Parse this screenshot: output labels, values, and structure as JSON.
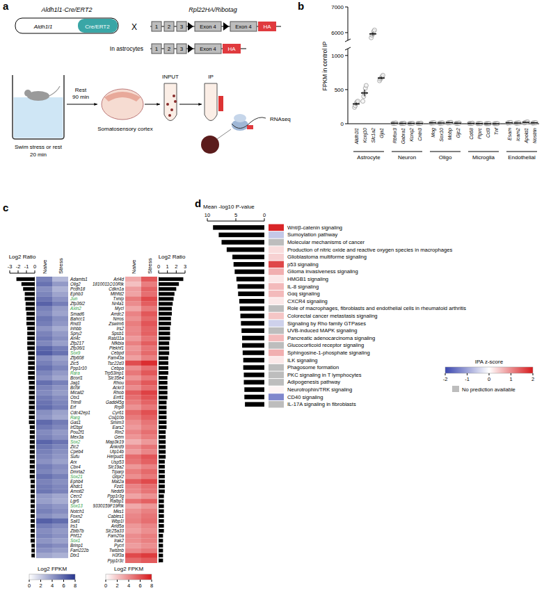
{
  "panel_labels": [
    "a",
    "b",
    "c",
    "d"
  ],
  "diagram": {
    "left_title": "Aldh1l1-Cre/ERT2",
    "promoter": "Aldh1l1",
    "cre": "Cre/ERT2",
    "cross": "X",
    "right_title": "Rpl22HA/Ribotag",
    "exons": [
      "1",
      "2",
      "3"
    ],
    "exon4": "Exon 4",
    "tag": "HA",
    "astro_label": "In astrocytes",
    "swim": "Swim stress or rest",
    "swim_time": "20 min",
    "rest": "Rest",
    "rest_time": "90 min",
    "tissue": "Somatosensory cortex",
    "input": "INPUT",
    "ip": "IP",
    "seq": "RNAseq"
  },
  "chart_data": [
    {
      "type": "dot",
      "ylabel": "FPKM in control IP",
      "ylim": [
        0,
        7000
      ],
      "ybreak": [
        1100,
        5700
      ],
      "yticks": [
        0,
        500,
        1000,
        6000,
        7000
      ],
      "series": [
        {
          "name": "Astrocyte",
          "categories": [
            "Aldh1l1",
            "Kcnj10",
            "Slc1a2",
            "Gja1"
          ],
          "values": [
            290,
            450,
            5950,
            670
          ],
          "errors": [
            20,
            50,
            70,
            20
          ],
          "points": [
            [
              240,
              265,
              300,
              320,
              330
            ],
            [
              330,
              400,
              450,
              520,
              560
            ],
            [
              5800,
              5900,
              5950,
              6050,
              6100
            ],
            [
              630,
              655,
              670,
              690,
              710
            ]
          ]
        },
        {
          "name": "Neuron",
          "categories": [
            "Rbfox3",
            "Gabra1",
            "Kcnq2",
            "Cntn3"
          ],
          "values": [
            8,
            5,
            4,
            6
          ],
          "errors": [
            1,
            1,
            1,
            1
          ],
          "points": [
            [
              6,
              7,
              8,
              9,
              10
            ],
            [
              3,
              4,
              5,
              6,
              7
            ],
            [
              2,
              3,
              4,
              5,
              6
            ],
            [
              4,
              5,
              6,
              7,
              8
            ]
          ]
        },
        {
          "name": "Oligo",
          "categories": [
            "Mog",
            "Sox10",
            "Mobp",
            "Gjc2"
          ],
          "values": [
            12,
            10,
            15,
            8
          ],
          "errors": [
            1,
            1,
            1,
            1
          ],
          "points": [
            [
              9,
              11,
              12,
              13,
              15
            ],
            [
              8,
              9,
              10,
              11,
              12
            ],
            [
              11,
              13,
              15,
              17,
              19
            ],
            [
              6,
              7,
              8,
              9,
              10
            ]
          ]
        },
        {
          "name": "Microglia",
          "categories": [
            "Cd68",
            "Ptprc",
            "Ccl3",
            "Tnf"
          ],
          "values": [
            6,
            2,
            1,
            1
          ],
          "errors": [
            1,
            1,
            1,
            1
          ],
          "points": [
            [
              4,
              5,
              6,
              7,
              8
            ],
            [
              1,
              2,
              2,
              2,
              3
            ],
            [
              0,
              1,
              1,
              1,
              2
            ],
            [
              0,
              1,
              1,
              1,
              2
            ]
          ]
        },
        {
          "name": "Endothelial",
          "categories": [
            "Esam",
            "Icam2",
            "Apold1",
            "Nostrin"
          ],
          "values": [
            14,
            10,
            20,
            12
          ],
          "errors": [
            1,
            1,
            1,
            1
          ],
          "points": [
            [
              10,
              12,
              14,
              16,
              18
            ],
            [
              8,
              9,
              10,
              11,
              12
            ],
            [
              12,
              16,
              20,
              24,
              28
            ],
            [
              9,
              11,
              12,
              13,
              15
            ]
          ]
        }
      ]
    },
    {
      "type": "heatmap",
      "columns": [
        "Naive",
        "Stress"
      ],
      "ratio_label": "Log2 Ratio",
      "colorbar_label": "Log2 FPKM",
      "panels": [
        {
          "genes": [
            "Adamts1",
            "Olig2",
            "Pcdh18",
            "Ephb3",
            "Jun",
            "Zfp36l2",
            "Axin2",
            "Smad6",
            "Bahcc1",
            "Rnd3",
            "Inhbb",
            "Spry2",
            "Arl4c",
            "Zfp217",
            "Zfp36l1",
            "Sox9",
            "Zfp608",
            "Zic5",
            "Ppp1r10",
            "Rara",
            "Bcorl1",
            "Jag1",
            "Bcl9l",
            "Micall2",
            "Otx1",
            "Trim8",
            "Erf",
            "Cdc42ep1",
            "Rarg",
            "Gas1",
            "Irf2bpl",
            "Pou2f1",
            "Mex3a",
            "Sox2",
            "Zic2",
            "Cpeb4",
            "Sufu",
            "Arx",
            "Cbx4",
            "Dmrta2",
            "Sox21",
            "Ephb4",
            "Ahdc1",
            "Amotl2",
            "Cecr2",
            "Lgr6",
            "Sox13",
            "Notch1",
            "Foxn2",
            "Sall1",
            "Irs1",
            "Zbtb7b",
            "Phf12",
            "Sox1",
            "Brinp1",
            "Fam222b",
            "Dtx1"
          ],
          "naive": [
            5.0,
            5.6,
            4.4,
            4.8,
            5.5,
            6.2,
            5.0,
            4.6,
            5.4,
            5.1,
            4.2,
            4.9,
            5.3,
            4.7,
            6.0,
            6.4,
            4.5,
            5.0,
            5.6,
            4.8,
            4.3,
            5.7,
            4.9,
            4.6,
            5.2,
            5.5,
            5.8,
            4.4,
            4.1,
            5.9,
            5.3,
            4.6,
            4.9,
            6.1,
            5.4,
            5.0,
            4.7,
            4.3,
            5.1,
            4.8,
            5.6,
            4.9,
            5.2,
            5.4,
            4.0,
            3.8,
            4.6,
            5.0,
            4.4,
            6.3,
            5.1,
            4.5,
            4.8,
            4.2,
            4.9,
            4.3,
            3.5
          ],
          "stress": [
            2.8,
            4.0,
            3.0,
            3.6,
            4.3,
            5.1,
            3.9,
            3.6,
            4.4,
            4.1,
            3.3,
            4.0,
            4.4,
            3.8,
            5.1,
            5.6,
            3.7,
            4.2,
            4.8,
            4.0,
            3.5,
            5.0,
            4.2,
            3.9,
            4.5,
            4.8,
            5.1,
            3.7,
            3.4,
            5.2,
            4.7,
            4.0,
            4.3,
            5.5,
            4.8,
            4.4,
            4.1,
            3.7,
            4.5,
            4.2,
            5.0,
            4.4,
            4.7,
            4.9,
            3.5,
            3.3,
            4.1,
            4.5,
            3.9,
            5.8,
            4.6,
            4.0,
            4.3,
            3.7,
            4.5,
            3.9,
            3.1
          ],
          "log2_ratio": [
            -2.2,
            -1.6,
            -1.4,
            -1.2,
            -1.2,
            -1.1,
            -1.1,
            -1.0,
            -1.0,
            -1.0,
            -0.9,
            -0.9,
            -0.9,
            -0.9,
            -0.9,
            -0.8,
            -0.8,
            -0.8,
            -0.8,
            -0.8,
            -0.8,
            -0.7,
            -0.7,
            -0.7,
            -0.7,
            -0.7,
            -0.7,
            -0.7,
            -0.7,
            -0.7,
            -0.6,
            -0.6,
            -0.6,
            -0.6,
            -0.6,
            -0.6,
            -0.6,
            -0.6,
            -0.6,
            -0.6,
            -0.6,
            -0.5,
            -0.5,
            -0.5,
            -0.5,
            -0.5,
            -0.5,
            -0.5,
            -0.5,
            -0.5,
            -0.5,
            -0.5,
            -0.5,
            -0.5,
            -0.4,
            -0.4,
            -0.4
          ],
          "label_colors": [
            "#000000",
            "#000000",
            "#000000",
            "#000000",
            "#2e9e3e",
            "#000000",
            "#2e9e3e",
            "#000000",
            "#000000",
            "#000000",
            "#000000",
            "#000000",
            "#000000",
            "#000000",
            "#000000",
            "#2e9e3e",
            "#000000",
            "#000000",
            "#000000",
            "#2e9e3e",
            "#000000",
            "#000000",
            "#000000",
            "#000000",
            "#000000",
            "#000000",
            "#000000",
            "#000000",
            "#2e9e3e",
            "#000000",
            "#000000",
            "#000000",
            "#000000",
            "#2e9e3e",
            "#000000",
            "#000000",
            "#000000",
            "#000000",
            "#000000",
            "#000000",
            "#2e9e3e",
            "#000000",
            "#000000",
            "#000000",
            "#000000",
            "#000000",
            "#2e9e3e",
            "#000000",
            "#000000",
            "#000000",
            "#000000",
            "#000000",
            "#000000",
            "#2e9e3e",
            "#000000",
            "#000000",
            "#000000"
          ],
          "ratio_lim": [
            -3,
            0
          ],
          "ratio_ticks": [
            -3,
            -2,
            -1,
            0
          ],
          "colors": [
            "#ffffff",
            "#27358f"
          ],
          "colorbar_range": [
            0,
            8
          ],
          "colorbar_ticks": [
            0,
            2,
            4,
            6,
            8
          ]
        },
        {
          "genes": [
            "Arl4d",
            "1810011O10Rik",
            "Cdkn1a",
            "Mthfd2",
            "Txnip",
            "Nr4a1",
            "Mycl",
            "Arrdc2",
            "Nrros",
            "Zswim6",
            "Irs2",
            "Spsb1",
            "Rasl11a",
            "Nfkbia",
            "Plekhf1",
            "Cebpd",
            "Fam43a",
            "Tsc22d3",
            "Cebpa",
            "Trp53inp1",
            "Slc35e4",
            "Rhou",
            "Ackr3",
            "Rhob",
            "Errfi1",
            "Gadd45g",
            "Rrp8",
            "Cyr61",
            "Coq10b",
            "Smim3",
            "Ears2",
            "Rin2",
            "Gem",
            "Map3k19",
            "Ankrd9",
            "Utp14b",
            "Herpud1",
            "Usp53",
            "Slc19a2",
            "Tiparp",
            "Glipr2",
            "Mat2a",
            "Fzd1",
            "Nedd9",
            "Ppp1r3g",
            "Ralbp1",
            "9330159F19Rik",
            "Mks1",
            "Cables1",
            "Wbp1l",
            "Arid5a",
            "Slc25a33",
            "Fam20a",
            "Irak2",
            "Pycrl",
            "Twistnb",
            "H3f3a",
            "Ppp1r3c"
          ],
          "naive": [
            3.0,
            2.2,
            3.4,
            3.2,
            4.6,
            4.0,
            3.1,
            4.3,
            3.8,
            4.5,
            4.1,
            4.2,
            3.5,
            4.4,
            3.6,
            4.0,
            3.3,
            6.2,
            3.9,
            4.7,
            3.7,
            4.8,
            4.0,
            5.6,
            5.0,
            4.5,
            3.8,
            5.2,
            4.6,
            3.9,
            3.5,
            4.2,
            3.7,
            2.8,
            4.0,
            3.4,
            5.1,
            4.8,
            3.6,
            4.5,
            3.9,
            5.6,
            4.3,
            4.1,
            3.2,
            4.9,
            3.0,
            3.8,
            4.2,
            4.4,
            3.6,
            3.3,
            4.0,
            3.9,
            3.4,
            4.1,
            6.3,
            5.2
          ],
          "stress": [
            5.8,
            4.5,
            5.4,
            5.0,
            6.3,
            5.6,
            4.6,
            5.8,
            5.2,
            5.9,
            5.4,
            5.5,
            4.8,
            5.6,
            4.8,
            5.2,
            4.4,
            7.3,
            5.0,
            5.8,
            4.7,
            5.8,
            5.0,
            6.6,
            6.0,
            5.4,
            4.7,
            6.1,
            5.5,
            4.8,
            4.4,
            5.0,
            4.5,
            3.6,
            4.8,
            4.2,
            5.9,
            5.5,
            4.3,
            5.2,
            4.6,
            6.3,
            5.0,
            4.8,
            3.8,
            5.5,
            3.6,
            4.4,
            4.8,
            5.0,
            4.2,
            3.9,
            4.5,
            4.4,
            3.9,
            4.6,
            6.8,
            5.7
          ],
          "log2_ratio": [
            2.8,
            2.3,
            2.0,
            1.8,
            1.7,
            1.6,
            1.5,
            1.5,
            1.4,
            1.4,
            1.3,
            1.3,
            1.3,
            1.2,
            1.2,
            1.2,
            1.1,
            1.1,
            1.1,
            1.1,
            1.0,
            1.0,
            1.0,
            1.0,
            1.0,
            0.9,
            0.9,
            0.9,
            0.9,
            0.9,
            0.9,
            0.8,
            0.8,
            0.8,
            0.8,
            0.8,
            0.8,
            0.7,
            0.7,
            0.7,
            0.7,
            0.7,
            0.7,
            0.7,
            0.6,
            0.6,
            0.6,
            0.6,
            0.6,
            0.6,
            0.6,
            0.6,
            0.5,
            0.5,
            0.5,
            0.5,
            0.5,
            0.5
          ],
          "ratio_lim": [
            0,
            3
          ],
          "ratio_ticks": [
            0,
            1,
            2,
            3
          ],
          "colors": [
            "#ffffff",
            "#d7191c"
          ],
          "colorbar_range": [
            0,
            8
          ],
          "colorbar_ticks": [
            0,
            2,
            4,
            6,
            8
          ]
        }
      ]
    },
    {
      "type": "bar",
      "orientation": "horizontal",
      "xlabel": "Mean -log10 P-value",
      "xlim": [
        10,
        0
      ],
      "xticks": [
        10,
        5,
        0
      ],
      "color": "#000000",
      "categories": [
        "Wnt/β-catenin signaling",
        "Sumoylation pathway",
        "Molecular mechanisms of cancer",
        "Production of nitric oxide and reactive oxygen species in macrophages",
        "Glioblastoma multiforme signaling",
        "p53 signaling",
        "Glioma invasiveness signaling",
        "HMGB1 signaling",
        "IL-8 signaling",
        "Gαq signaling",
        "CXCR4 signaling",
        "Role of macrophages, fibroblasts and endothelial cells in rheumatoid arthritis",
        "Colorectal cancer metastasis signaling",
        "Signaling by Rho family GTPases",
        "UVB-induced MAPK signaling",
        "Pancreatic adenocarcinoma signaling",
        "Glucocorticoid receptor signaling",
        "Sphingosine-1-phosphate signaling",
        "ILK signaling",
        "Phagosome formation",
        "PKC signaling in T lymphocytes",
        "Adipogenesis pathway",
        "Neurotrophin/TRK signaling",
        "CD40 signaling",
        "IL-17A signaling in fibroblasts"
      ],
      "values": [
        9.0,
        8.0,
        7.5,
        6.6,
        5.6,
        5.4,
        5.2,
        4.9,
        4.7,
        4.6,
        4.4,
        4.3,
        4.2,
        4.1,
        4.0,
        3.9,
        3.9,
        3.8,
        3.7,
        3.7,
        3.6,
        3.6,
        3.5,
        3.5,
        3.4
      ],
      "z_scores": [
        1.9,
        -0.6,
        null,
        0.3,
        0.4,
        1.6,
        0.7,
        0.2,
        0.6,
        0.6,
        0.2,
        null,
        0.5,
        -0.5,
        null,
        0.6,
        null,
        0.7,
        0.2,
        null,
        null,
        null,
        0.1,
        -1.3,
        null
      ],
      "z_label": "IPA z-score",
      "z_range": [
        -2,
        2
      ],
      "z_ticks": [
        -2,
        -1,
        0,
        1,
        2
      ],
      "z_colors": [
        "#3b47b0",
        "#ffffff",
        "#d7191c"
      ],
      "null_color": "#bdbdbd",
      "null_label": "No prediction available"
    }
  ]
}
